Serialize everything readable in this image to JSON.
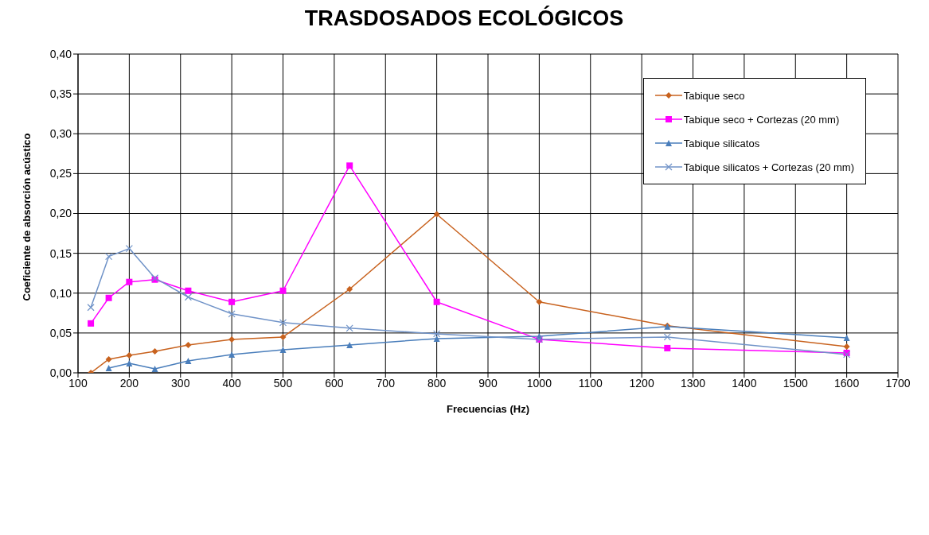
{
  "chart_data": {
    "type": "line",
    "title": "TRASDOSADOS  ECOLÓGICOS",
    "xlabel": "Frecuencias  (Hz)",
    "ylabel": "Coeficiente de absorción acústico",
    "x": [
      125,
      160,
      200,
      250,
      315,
      400,
      500,
      630,
      800,
      1000,
      1250,
      1600
    ],
    "series": [
      {
        "name": "Tabique seco",
        "color": "#c8621e",
        "marker": "diamond",
        "values": [
          0.0,
          0.017,
          0.022,
          0.027,
          0.035,
          0.042,
          0.045,
          0.105,
          0.199,
          0.089,
          0.059,
          0.033
        ]
      },
      {
        "name": "Tabique seco + Cortezas (20 mm)",
        "color": "#ff00ff",
        "marker": "square",
        "values": [
          0.062,
          0.094,
          0.114,
          0.117,
          0.103,
          0.089,
          0.103,
          0.26,
          0.089,
          0.042,
          0.031,
          0.025
        ]
      },
      {
        "name": "Tabique silicatos",
        "color": "#4a7ebb",
        "marker": "triangle",
        "values": [
          null,
          0.006,
          0.012,
          0.005,
          0.015,
          0.023,
          0.029,
          0.035,
          0.043,
          0.046,
          0.058,
          0.044
        ]
      },
      {
        "name": "Tabique silicatos + Cortezas (20 mm)",
        "color": "#7093c8",
        "marker": "cross",
        "values": [
          0.082,
          0.146,
          0.156,
          0.119,
          0.095,
          0.074,
          0.063,
          0.056,
          0.049,
          0.042,
          0.045,
          0.023
        ]
      }
    ],
    "xlim": [
      100,
      1700
    ],
    "xticks": [
      100,
      200,
      300,
      400,
      500,
      600,
      700,
      800,
      900,
      1000,
      1100,
      1200,
      1300,
      1400,
      1500,
      1600,
      1700
    ],
    "ylim": [
      0,
      0.4
    ],
    "yticks": [
      {
        "value": 0,
        "label": "0,00"
      },
      {
        "value": 0.05,
        "label": "0,05"
      },
      {
        "value": 0.1,
        "label": "0,10"
      },
      {
        "value": 0.15,
        "label": "0,15"
      },
      {
        "value": 0.2,
        "label": "0,20"
      },
      {
        "value": 0.25,
        "label": "0,25"
      },
      {
        "value": 0.3,
        "label": "0,30"
      },
      {
        "value": 0.35,
        "label": "0,35"
      },
      {
        "value": 0.4,
        "label": "0,40"
      }
    ],
    "grid": true,
    "legend": "top right",
    "line_style": "solid"
  }
}
